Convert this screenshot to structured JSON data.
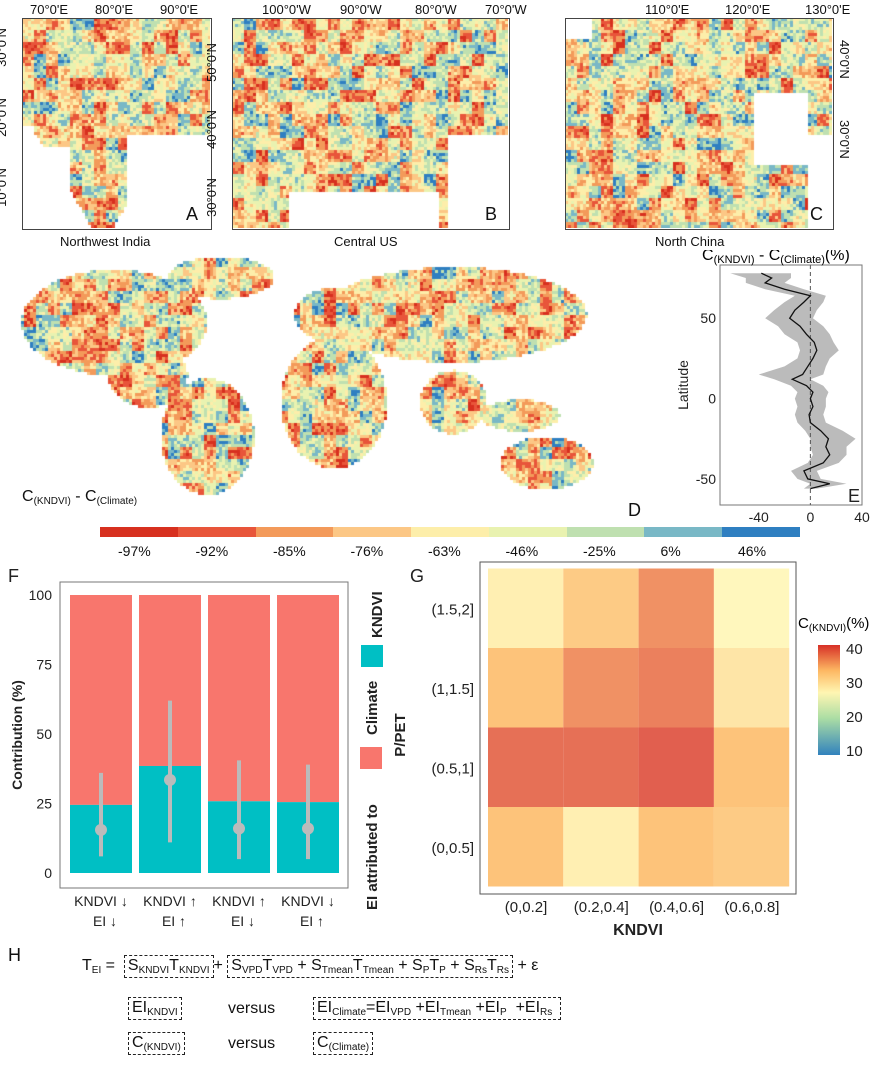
{
  "panels": {
    "A": {
      "label": "A",
      "caption": "Northwest India",
      "top_ticks": [
        "70°0'E",
        "80°0'E",
        "90°0'E"
      ],
      "side_ticks": [
        "30°0'N",
        "20°0'N",
        "10°0'N"
      ]
    },
    "B": {
      "label": "B",
      "caption": "Central US",
      "top_ticks": [
        "100°0'W",
        "90°0'W",
        "80°0'W",
        "70°0'W"
      ],
      "side_ticks": [
        "50°0'N",
        "40°0'N",
        "30°0'N"
      ]
    },
    "C": {
      "label": "C",
      "caption": "North China",
      "top_ticks": [
        "110°0'E",
        "120°0'E",
        "130°0'E"
      ],
      "side_ticks": [
        "40°0'N",
        "30°0'N"
      ]
    },
    "D": {
      "label": "D",
      "title_main": "C",
      "title_sub1": "(KNDVI)",
      "title_mid": " - C",
      "title_sub2": "(Climate)"
    }
  },
  "colorbar": {
    "labels": [
      "-97%",
      "-92%",
      "-85%",
      "-76%",
      "-63%",
      "-46%",
      "-25%",
      "6%",
      "46%"
    ],
    "colors": [
      "#d7301f",
      "#e8553a",
      "#f39a5a",
      "#fcc785",
      "#fdeeaa",
      "#e9f2b0",
      "#bfe0b0",
      "#79b8c6",
      "#2f7fc1"
    ]
  },
  "chart_data": [
    {
      "panel": "E",
      "type": "line",
      "title_main": "C",
      "title_sub1": "(KNDVI)",
      "title_mid": " - C",
      "title_sub2": "(Climate)",
      "title_end": "(%)",
      "ylabel": "Latitude",
      "xlim": [
        -70,
        40
      ],
      "ylim": [
        -60,
        80
      ],
      "xticks": [
        "-40",
        "0",
        "40"
      ],
      "yticks": [
        "-50",
        "0",
        "50"
      ],
      "label": "E",
      "lat": [
        78,
        75,
        72,
        68,
        64,
        60,
        55,
        50,
        45,
        40,
        35,
        30,
        25,
        20,
        15,
        12,
        8,
        4,
        0,
        -5,
        -10,
        -15,
        -20,
        -25,
        -30,
        -35,
        -40,
        -45,
        -50,
        -53,
        -56
      ],
      "mean": [
        -38,
        -30,
        -35,
        -20,
        0,
        -5,
        -12,
        -16,
        -8,
        -3,
        3,
        5,
        2,
        -2,
        -6,
        -14,
        -3,
        2,
        0,
        2,
        -1,
        0,
        8,
        14,
        12,
        15,
        10,
        -5,
        -2,
        15,
        0
      ],
      "lower": [
        -62,
        -50,
        -50,
        -35,
        -12,
        -20,
        -28,
        -35,
        -25,
        -20,
        -10,
        -8,
        -10,
        -20,
        -40,
        -28,
        -15,
        -10,
        -12,
        -10,
        -12,
        -10,
        -4,
        0,
        0,
        2,
        -2,
        -15,
        -10,
        0,
        -5
      ],
      "upper": [
        -15,
        -15,
        -20,
        -5,
        12,
        10,
        5,
        2,
        10,
        15,
        18,
        22,
        15,
        12,
        10,
        0,
        10,
        14,
        12,
        12,
        10,
        12,
        25,
        35,
        28,
        28,
        22,
        5,
        8,
        28,
        5
      ]
    },
    {
      "panel": "F",
      "type": "bar",
      "label": "F",
      "ylabel": "Contribution (%)",
      "ylim": [
        0,
        100
      ],
      "yticks": [
        "0",
        "25",
        "50",
        "75",
        "100"
      ],
      "categories": [
        [
          "KNDVI ↓",
          "EI ↓"
        ],
        [
          "KNDVI ↑",
          "EI ↑"
        ],
        [
          "KNDVI ↑",
          "EI ↓"
        ],
        [
          "KNDVI ↓",
          "EI ↑"
        ]
      ],
      "series": [
        {
          "name": "KNDVI",
          "values": [
            24.5,
            38.5,
            25.8,
            25.5
          ],
          "color": "#00bfc4"
        },
        {
          "name": "Climate",
          "values": [
            75.5,
            61.5,
            74.2,
            74.5
          ],
          "color": "#f8766d"
        }
      ],
      "points": {
        "mean": [
          15.5,
          33.5,
          16,
          16
        ],
        "low": [
          6,
          11,
          5,
          5
        ],
        "high": [
          36,
          62,
          40.5,
          39
        ]
      },
      "legend_title": "EI attributed to",
      "legend_position": "right"
    },
    {
      "panel": "G",
      "type": "heatmap",
      "label": "G",
      "xlabel": "KNDVI",
      "ylabel": "P/PET",
      "x_categories": [
        "(0,0.2]",
        "(0.2,0.4]",
        "(0.4,0.6]",
        "(0.6,0.8]"
      ],
      "y_categories": [
        "(0,0.5]",
        "(0.5,1]",
        "(1,1.5]",
        "(1.5,2]"
      ],
      "values": [
        [
          33,
          28,
          33,
          32
        ],
        [
          38,
          38,
          39,
          33
        ],
        [
          33,
          36,
          37,
          29
        ],
        [
          28,
          32,
          36,
          27
        ]
      ],
      "legend_title_main": "C",
      "legend_sub": "(KNDVI)",
      "legend_end": "(%)",
      "legend_ticks": [
        "40",
        "30",
        "20",
        "10"
      ],
      "scale": [
        10,
        40
      ]
    }
  ],
  "equation": {
    "label": "H",
    "line1": {
      "lhs": "T",
      "lhs_sub": "EI",
      "eq": " = ",
      "t1": "S",
      "t1s": "KNDVI",
      "t2": "T",
      "t2s": "KNDVI",
      "plus": "+",
      "c1": "S",
      "c1s": "VPD",
      "c2": "T",
      "c2s": "VPD",
      "c3": " + S",
      "c3s": "Tmean",
      "c4": "T",
      "c4s": "Tmean",
      "c5": " + S",
      "c5s": "P",
      "c6": "T",
      "c6s": "P",
      "c7": " + S",
      "c7s": "Rs",
      "c8": "T",
      "c8s": "Rs",
      "end": "+ ε"
    },
    "line2": {
      "a": "EI",
      "as": "KNDVI",
      "versus": "versus",
      "b": "EI",
      "bs": "Climate",
      "b2": "=EI",
      "b2s": "VPD",
      "b3": " +EI",
      "b3s": "Tmean",
      "b4": " +EI",
      "b4s": "P",
      "b5": "  +EI",
      "b5s": "Rs"
    },
    "line3": {
      "a": "C",
      "as": "(KNDVI)",
      "versus": "versus",
      "b": "C",
      "bs": "(Climate)"
    }
  }
}
